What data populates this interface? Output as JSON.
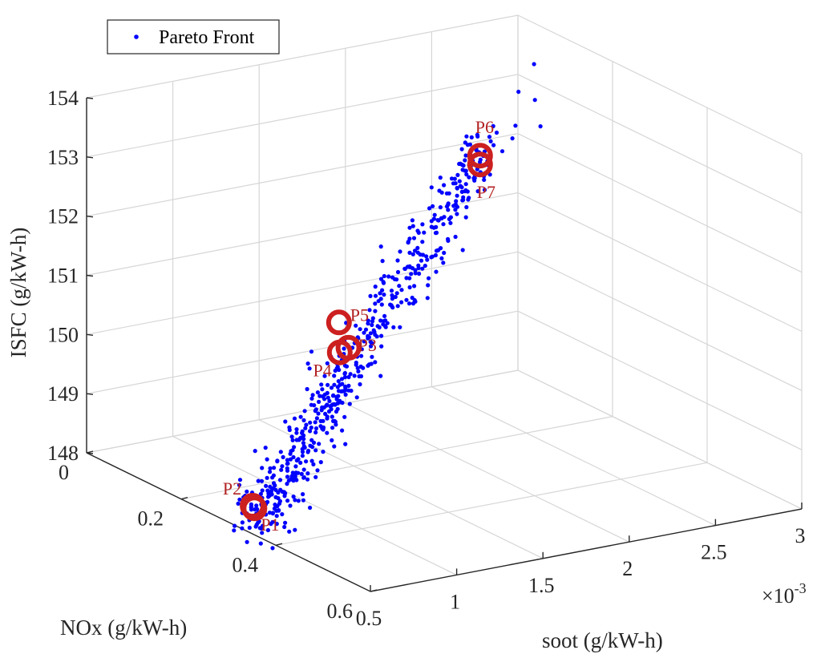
{
  "chart_data": {
    "type": "scatter",
    "projection": "3d",
    "legend": {
      "entries": [
        {
          "label": "Pareto Front",
          "color": "#0000ff",
          "marker": "dot"
        }
      ],
      "placement": "top-left"
    },
    "axes": {
      "x": {
        "label": "soot (g/kW-h)",
        "ticks": [
          "0.5",
          "1",
          "1.5",
          "2",
          "2.5",
          "3"
        ],
        "tick_values": [
          0.5,
          1,
          1.5,
          2,
          2.5,
          3
        ],
        "range": [
          0.5,
          3
        ],
        "exponent_label": "×10",
        "exponent": "-3"
      },
      "y": {
        "label": "NOx (g/kW-h)",
        "ticks": [
          "0",
          "0.2",
          "0.4",
          "0.6"
        ],
        "tick_values": [
          0,
          0.2,
          0.4,
          0.6
        ],
        "range": [
          0,
          0.6
        ]
      },
      "z": {
        "label": "ISFC (g/kW-h)",
        "ticks": [
          "148",
          "149",
          "150",
          "151",
          "152",
          "153",
          "154"
        ],
        "tick_values": [
          148,
          149,
          150,
          151,
          152,
          153,
          154
        ],
        "range": [
          148,
          154
        ]
      }
    },
    "grid": true,
    "colors": {
      "series": "#0000ff",
      "highlight": "#cc1f1f",
      "highlight_label": "#b22222"
    },
    "highlighted_points": [
      {
        "label": "P1",
        "soot": 0.65,
        "nox": 0.3,
        "isfc": 148.15
      },
      {
        "label": "P2",
        "soot": 0.64,
        "nox": 0.3,
        "isfc": 148.2
      },
      {
        "label": "P3",
        "soot": 1.25,
        "nox": 0.28,
        "isfc": 150.45
      },
      {
        "label": "P4",
        "soot": 1.2,
        "nox": 0.28,
        "isfc": 150.4
      },
      {
        "label": "P5",
        "soot": 1.25,
        "nox": 0.26,
        "isfc": 150.8
      },
      {
        "label": "P6",
        "soot": 2.15,
        "nox": 0.23,
        "isfc": 153.0
      },
      {
        "label": "P7",
        "soot": 2.15,
        "nox": 0.23,
        "isfc": 152.85
      }
    ],
    "series": [
      {
        "name": "Pareto Front",
        "count": 600,
        "soot_range": [
          0.6,
          2.55
        ],
        "nox_range": [
          0.18,
          0.36
        ],
        "isfc_range": [
          148.0,
          154.0
        ]
      }
    ]
  }
}
